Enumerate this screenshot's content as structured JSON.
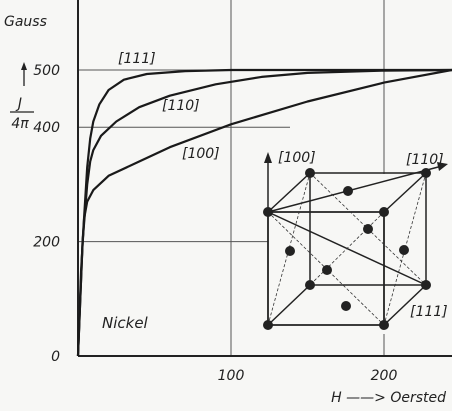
{
  "chart_data": {
    "type": "line",
    "title": "",
    "ylabel_unit": "Gauss",
    "ylabel_symbol_num": "J",
    "ylabel_symbol_den": "4π",
    "xlabel": "H ——> Oersted",
    "material_label": "Nickel",
    "xlim": [
      0,
      250
    ],
    "ylim": [
      0,
      560
    ],
    "x_ticks": [
      {
        "value": 100,
        "label": "100"
      },
      {
        "value": 200,
        "label": "200"
      }
    ],
    "y_ticks": [
      {
        "value": 0,
        "label": "0"
      },
      {
        "value": 200,
        "label": "200"
      },
      {
        "value": 400,
        "label": "400"
      },
      {
        "value": 500,
        "label": "500"
      }
    ],
    "grid": true,
    "series": [
      {
        "name": "[111]",
        "x": [
          0,
          3,
          6,
          8,
          10,
          14,
          20,
          30,
          45,
          70,
          100,
          150,
          250
        ],
        "y": [
          0,
          200,
          330,
          380,
          410,
          440,
          465,
          483,
          493,
          498,
          500,
          500,
          500
        ]
      },
      {
        "name": "[110]",
        "x": [
          0,
          3,
          6,
          8,
          10,
          15,
          25,
          40,
          60,
          90,
          120,
          150,
          200,
          250
        ],
        "y": [
          0,
          200,
          300,
          340,
          360,
          385,
          410,
          435,
          455,
          475,
          488,
          495,
          499,
          500
        ]
      },
      {
        "name": "[100]",
        "x": [
          0,
          2,
          4,
          6,
          10,
          20,
          40,
          60,
          100,
          150,
          200,
          250
        ],
        "y": [
          0,
          150,
          240,
          270,
          290,
          315,
          340,
          365,
          405,
          445,
          478,
          500
        ]
      }
    ]
  },
  "inset": {
    "labels": {
      "dir100": "[100]",
      "dir110": "[110]",
      "dir111": "[111]"
    }
  }
}
